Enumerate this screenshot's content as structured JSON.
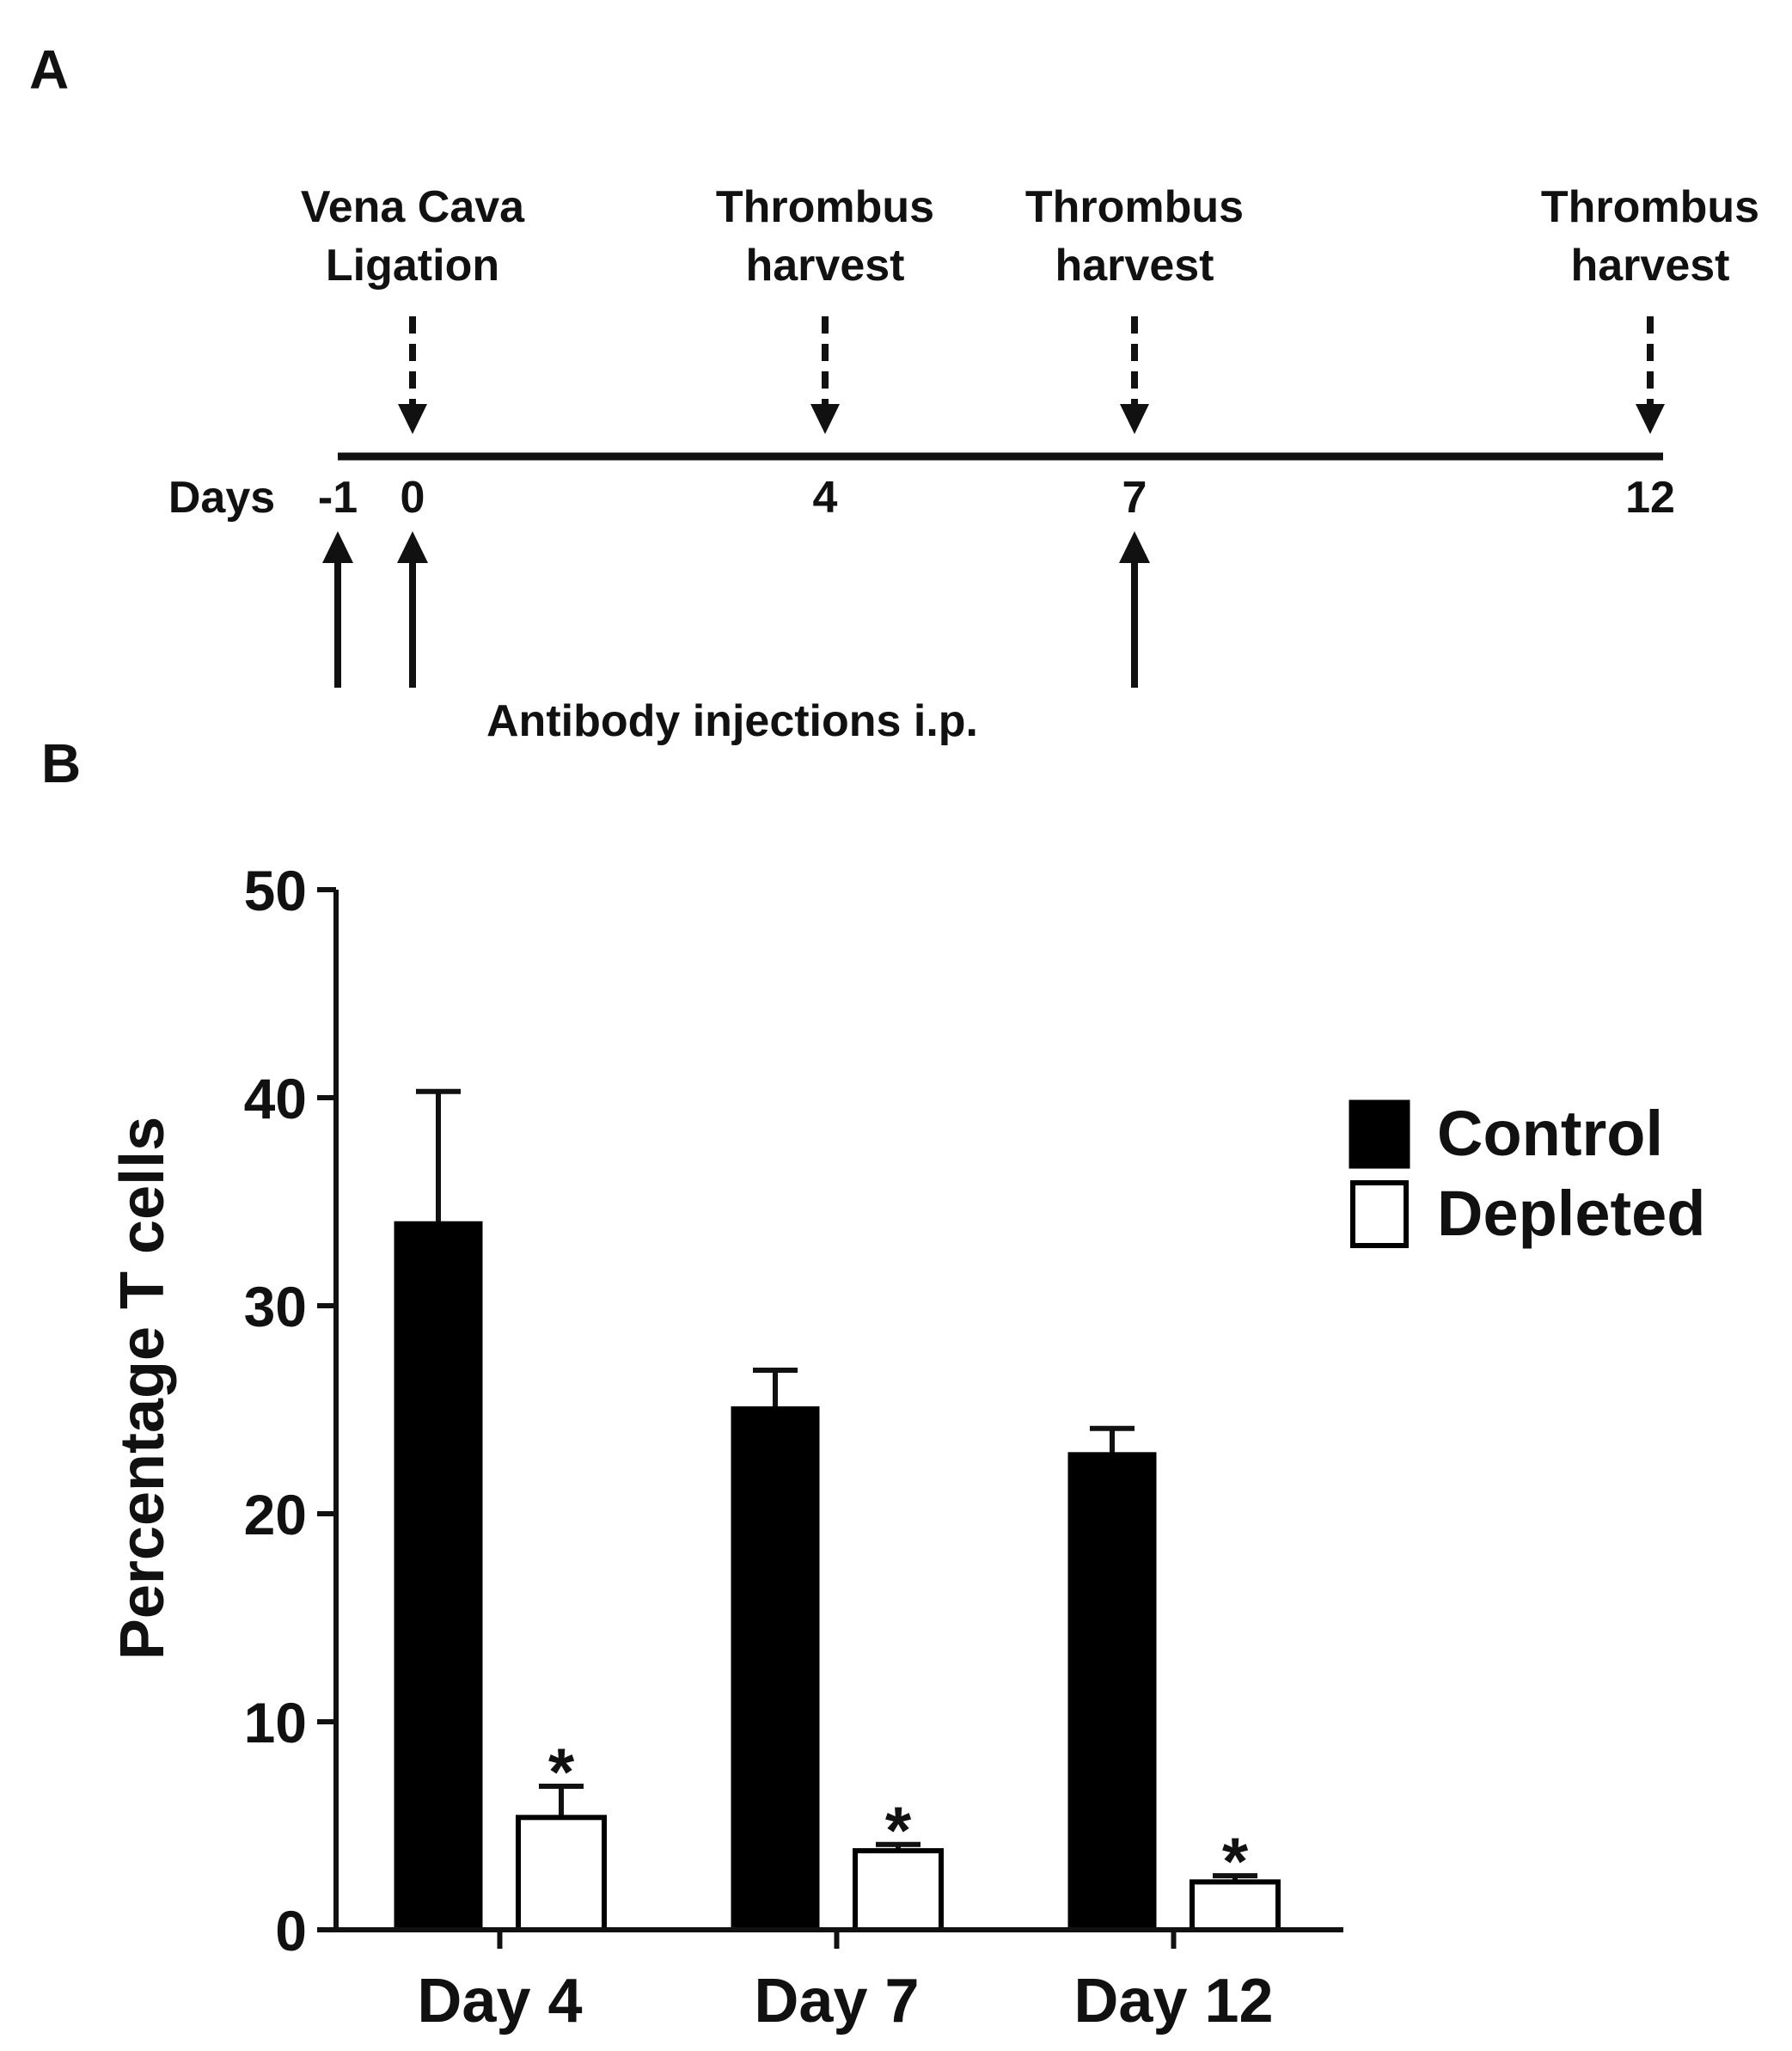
{
  "panels": {
    "a_label": "A",
    "b_label": "B"
  },
  "timeline": {
    "events_above": [
      {
        "day": 0,
        "lines": [
          "Vena Cava",
          "Ligation"
        ]
      },
      {
        "day": 4,
        "lines": [
          "Thrombus",
          "harvest"
        ]
      },
      {
        "day": 7,
        "lines": [
          "Thrombus",
          "harvest"
        ]
      },
      {
        "day": 12,
        "lines": [
          "Thrombus",
          "harvest"
        ]
      }
    ],
    "axis_label": "Days",
    "axis_range": [
      -1,
      12
    ],
    "ticks": [
      {
        "day": -1,
        "label": "-1"
      },
      {
        "day": 0,
        "label": "0"
      },
      {
        "day": 4,
        "label": "4"
      },
      {
        "day": 7,
        "label": "7"
      },
      {
        "day": 12,
        "label": "12"
      }
    ],
    "injection_days": [
      -1,
      0,
      7
    ],
    "injection_caption": "Antibody injections i.p."
  },
  "chart_data": {
    "type": "bar",
    "title": "",
    "xlabel": "",
    "ylabel": "Percentage T cells",
    "categories": [
      "Day 4",
      "Day 7",
      "Day 12"
    ],
    "ylim": [
      0,
      50
    ],
    "yticks": [
      0,
      10,
      20,
      30,
      40,
      50
    ],
    "legend_position": "right",
    "series": [
      {
        "name": "Control",
        "fill": "#000000",
        "values": [
          34,
          25.1,
          22.9
        ],
        "errors": [
          6.3,
          1.8,
          1.2
        ],
        "significance": [
          "",
          "",
          ""
        ]
      },
      {
        "name": "Depleted",
        "fill": "#ffffff",
        "values": [
          5.4,
          3.8,
          2.3
        ],
        "errors": [
          1.5,
          0.3,
          0.3
        ],
        "significance": [
          "*",
          "*",
          "*"
        ]
      }
    ]
  }
}
